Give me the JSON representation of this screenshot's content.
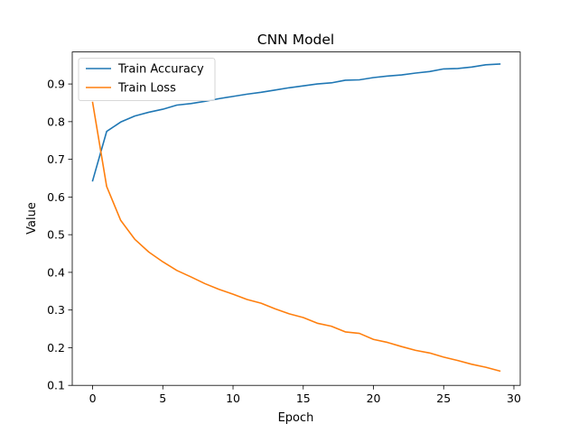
{
  "chart_data": {
    "type": "line",
    "title": "CNN Model",
    "xlabel": "Epoch",
    "ylabel": "Value",
    "xlim": [
      -1.45,
      30.45
    ],
    "ylim": [
      0.1,
      0.985
    ],
    "xticks": [
      0,
      5,
      10,
      15,
      20,
      25,
      30
    ],
    "yticks": [
      0.1,
      0.2,
      0.3,
      0.4,
      0.5,
      0.6,
      0.7,
      0.8,
      0.9
    ],
    "grid": false,
    "legend_position": "upper-left",
    "x": [
      0,
      1,
      2,
      3,
      4,
      5,
      6,
      7,
      8,
      9,
      10,
      11,
      12,
      13,
      14,
      15,
      16,
      17,
      18,
      19,
      20,
      21,
      22,
      23,
      24,
      25,
      26,
      27,
      28,
      29
    ],
    "series": [
      {
        "name": "Train Accuracy",
        "color": "#1f77b4",
        "values": [
          0.643,
          0.774,
          0.799,
          0.815,
          0.825,
          0.833,
          0.844,
          0.848,
          0.854,
          0.861,
          0.867,
          0.873,
          0.878,
          0.884,
          0.89,
          0.895,
          0.9,
          0.903,
          0.91,
          0.911,
          0.917,
          0.921,
          0.924,
          0.929,
          0.933,
          0.94,
          0.941,
          0.945,
          0.951,
          0.953
        ]
      },
      {
        "name": "Train Loss",
        "color": "#ff7f0e",
        "values": [
          0.851,
          0.628,
          0.538,
          0.488,
          0.454,
          0.428,
          0.405,
          0.388,
          0.37,
          0.355,
          0.342,
          0.328,
          0.318,
          0.303,
          0.29,
          0.28,
          0.265,
          0.257,
          0.242,
          0.238,
          0.222,
          0.214,
          0.203,
          0.193,
          0.186,
          0.175,
          0.166,
          0.156,
          0.148,
          0.138
        ]
      }
    ]
  }
}
